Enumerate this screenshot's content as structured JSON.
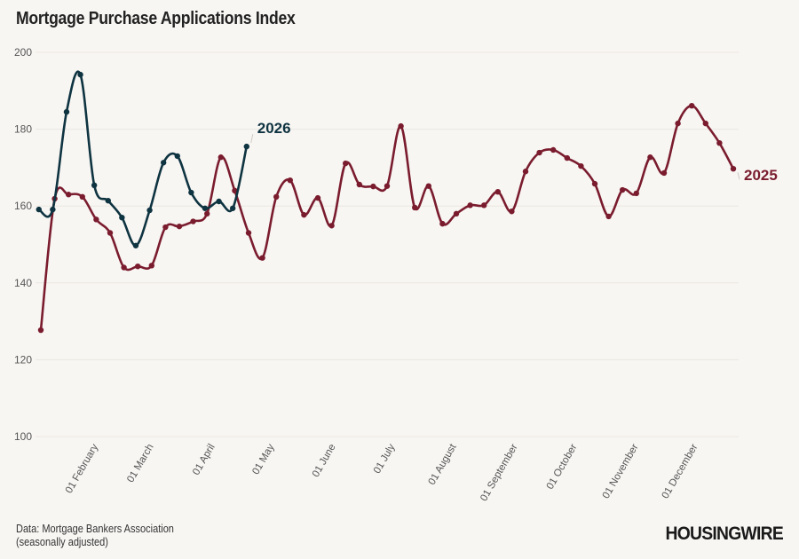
{
  "title": "Mortgage Purchase Applications Index",
  "source_line1": "Data: Mortgage Bankers Association",
  "source_line2": "(seasonally adjusted)",
  "logo": "HOUSINGWIRE",
  "chart_data": {
    "type": "line",
    "title": "Mortgage Purchase Applications Index",
    "xlabel": "",
    "ylabel": "",
    "ylim": [
      100,
      200
    ],
    "yticks": [
      100,
      120,
      140,
      160,
      180,
      200
    ],
    "xlim": [
      "2025-01-03",
      "2025-12-19"
    ],
    "xticks": [
      {
        "date": "2025-02-01",
        "label": "01 February"
      },
      {
        "date": "2025-03-01",
        "label": "01 March"
      },
      {
        "date": "2025-04-01",
        "label": "01 April"
      },
      {
        "date": "2025-05-01",
        "label": "01 May"
      },
      {
        "date": "2025-06-01",
        "label": "01 June"
      },
      {
        "date": "2025-07-01",
        "label": "01 July"
      },
      {
        "date": "2025-08-01",
        "label": "01 August"
      },
      {
        "date": "2025-09-01",
        "label": "01 September"
      },
      {
        "date": "2025-10-01",
        "label": "01 October"
      },
      {
        "date": "2025-11-01",
        "label": "01 November"
      },
      {
        "date": "2025-12-01",
        "label": "01 December"
      }
    ],
    "grid": true,
    "legend": "direct labels at line ends",
    "series": [
      {
        "name": "2025",
        "color": "#7a1c2e",
        "start_date": "2025-01-03",
        "interval_days": 7,
        "values": [
          127.7,
          161.9,
          163,
          162.4,
          156.5,
          153,
          144,
          144.3,
          144.5,
          154.5,
          154.7,
          156,
          158,
          172.7,
          164,
          153,
          146.5,
          162.4,
          166.7,
          157.7,
          162.1,
          154.9,
          171.1,
          165.6,
          165.1,
          165.2,
          180.8,
          159.6,
          165.2,
          155.4,
          158,
          160.2,
          160.2,
          163.7,
          158.6,
          169,
          173.9,
          174.6,
          172.5,
          170.4,
          165.8,
          157.3,
          164.2,
          163.3,
          172.7,
          168.6,
          181.5,
          186.1,
          181.5,
          176.4,
          169.7
        ]
      },
      {
        "name": "2026",
        "color": "#0f3441",
        "start_date": "2026-01-02",
        "interval_days": 7,
        "values": [
          159.1,
          159.1,
          184.5,
          194.2,
          165.4,
          161.4,
          157,
          149.7,
          158.9,
          171.3,
          173,
          163.5,
          159.4,
          161.2,
          159.4,
          175.5
        ]
      }
    ]
  }
}
